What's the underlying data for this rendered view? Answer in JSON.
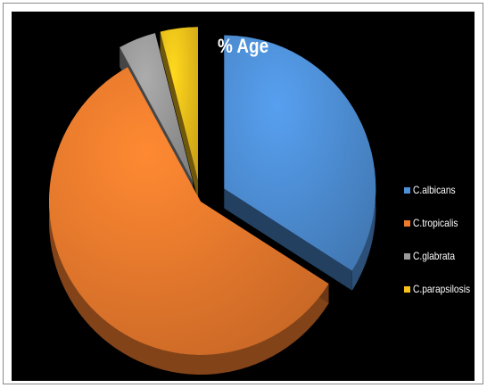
{
  "chart_data": {
    "type": "pie",
    "title": "% Age",
    "categories": [
      "C.albicans",
      "C.tropicalis",
      "C.glabrata",
      "C.parapsilosis"
    ],
    "values": [
      34,
      58,
      4,
      4
    ],
    "colors": [
      "#4e8fd6",
      "#ee7a2d",
      "#9a9a9a",
      "#f6c21a"
    ],
    "exploded": true,
    "style": "3d",
    "legend_position": "right"
  }
}
